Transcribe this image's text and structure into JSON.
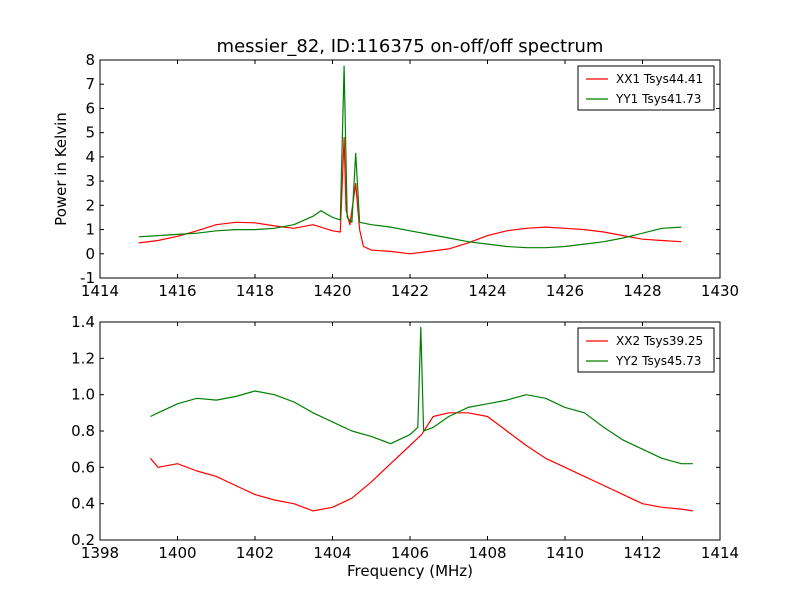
{
  "chart_data": [
    {
      "type": "line",
      "title": "messier_82, ID:116375 on-off/off spectrum",
      "xlabel": "",
      "ylabel": "Power in Kelvin",
      "xlim": [
        1414,
        1430
      ],
      "ylim": [
        -1,
        8
      ],
      "xticks": [
        1414,
        1416,
        1418,
        1420,
        1422,
        1424,
        1426,
        1428,
        1430
      ],
      "yticks": [
        -1,
        0,
        1,
        2,
        3,
        4,
        5,
        6,
        7,
        8
      ],
      "legend_position": "top-right",
      "series": [
        {
          "name": "XX1 Tsys44.41",
          "color": "#ff0000",
          "points": [
            [
              1415.0,
              0.45
            ],
            [
              1415.5,
              0.55
            ],
            [
              1416.0,
              0.72
            ],
            [
              1416.5,
              0.95
            ],
            [
              1417.0,
              1.2
            ],
            [
              1417.5,
              1.3
            ],
            [
              1418.0,
              1.28
            ],
            [
              1418.5,
              1.15
            ],
            [
              1419.0,
              1.05
            ],
            [
              1419.5,
              1.2
            ],
            [
              1420.0,
              0.95
            ],
            [
              1420.2,
              0.9
            ],
            [
              1420.3,
              4.8
            ],
            [
              1420.35,
              1.8
            ],
            [
              1420.45,
              1.2
            ],
            [
              1420.6,
              2.9
            ],
            [
              1420.7,
              1.0
            ],
            [
              1420.8,
              0.3
            ],
            [
              1421.0,
              0.15
            ],
            [
              1421.5,
              0.1
            ],
            [
              1422.0,
              0.0
            ],
            [
              1422.5,
              0.1
            ],
            [
              1423.0,
              0.2
            ],
            [
              1423.5,
              0.45
            ],
            [
              1424.0,
              0.75
            ],
            [
              1424.5,
              0.95
            ],
            [
              1425.0,
              1.05
            ],
            [
              1425.5,
              1.1
            ],
            [
              1426.0,
              1.05
            ],
            [
              1426.5,
              1.0
            ],
            [
              1427.0,
              0.9
            ],
            [
              1427.5,
              0.75
            ],
            [
              1428.0,
              0.6
            ],
            [
              1428.5,
              0.55
            ],
            [
              1429.0,
              0.5
            ]
          ]
        },
        {
          "name": "YY1 Tsys41.73",
          "color": "#008000",
          "points": [
            [
              1415.0,
              0.7
            ],
            [
              1415.5,
              0.75
            ],
            [
              1416.0,
              0.8
            ],
            [
              1416.5,
              0.85
            ],
            [
              1417.0,
              0.95
            ],
            [
              1417.5,
              1.0
            ],
            [
              1418.0,
              1.0
            ],
            [
              1418.5,
              1.05
            ],
            [
              1419.0,
              1.2
            ],
            [
              1419.5,
              1.55
            ],
            [
              1419.7,
              1.78
            ],
            [
              1420.0,
              1.5
            ],
            [
              1420.2,
              1.4
            ],
            [
              1420.3,
              7.75
            ],
            [
              1420.38,
              1.5
            ],
            [
              1420.5,
              1.3
            ],
            [
              1420.6,
              4.15
            ],
            [
              1420.7,
              1.3
            ],
            [
              1421.0,
              1.2
            ],
            [
              1421.5,
              1.1
            ],
            [
              1422.0,
              0.95
            ],
            [
              1422.5,
              0.8
            ],
            [
              1423.0,
              0.65
            ],
            [
              1423.5,
              0.5
            ],
            [
              1424.0,
              0.4
            ],
            [
              1424.5,
              0.3
            ],
            [
              1425.0,
              0.25
            ],
            [
              1425.5,
              0.25
            ],
            [
              1426.0,
              0.3
            ],
            [
              1426.5,
              0.4
            ],
            [
              1427.0,
              0.5
            ],
            [
              1427.5,
              0.65
            ],
            [
              1428.0,
              0.85
            ],
            [
              1428.5,
              1.05
            ],
            [
              1429.0,
              1.1
            ]
          ]
        }
      ]
    },
    {
      "type": "line",
      "title": "",
      "xlabel": "Frequency (MHz)",
      "ylabel": "",
      "xlim": [
        1398,
        1414
      ],
      "ylim": [
        0.2,
        1.4
      ],
      "xticks": [
        1398,
        1400,
        1402,
        1404,
        1406,
        1408,
        1410,
        1412,
        1414
      ],
      "ytick_labels": [
        "0.2",
        "0.4",
        "0.6",
        "0.8",
        "1.0",
        "1.2",
        "1.4"
      ],
      "yticks": [
        0.2,
        0.4,
        0.6,
        0.8,
        1.0,
        1.2,
        1.4
      ],
      "legend_position": "top-right",
      "series": [
        {
          "name": "XX2 Tsys39.25",
          "color": "#ff0000",
          "points": [
            [
              1399.3,
              0.65
            ],
            [
              1399.5,
              0.6
            ],
            [
              1400.0,
              0.62
            ],
            [
              1400.5,
              0.58
            ],
            [
              1401.0,
              0.55
            ],
            [
              1401.5,
              0.5
            ],
            [
              1402.0,
              0.45
            ],
            [
              1402.5,
              0.42
            ],
            [
              1403.0,
              0.4
            ],
            [
              1403.5,
              0.36
            ],
            [
              1404.0,
              0.38
            ],
            [
              1404.5,
              0.43
            ],
            [
              1405.0,
              0.52
            ],
            [
              1405.5,
              0.62
            ],
            [
              1406.0,
              0.72
            ],
            [
              1406.3,
              0.78
            ],
            [
              1406.6,
              0.88
            ],
            [
              1407.0,
              0.9
            ],
            [
              1407.5,
              0.9
            ],
            [
              1408.0,
              0.88
            ],
            [
              1408.5,
              0.8
            ],
            [
              1409.0,
              0.72
            ],
            [
              1409.5,
              0.65
            ],
            [
              1410.0,
              0.6
            ],
            [
              1410.5,
              0.55
            ],
            [
              1411.0,
              0.5
            ],
            [
              1411.5,
              0.45
            ],
            [
              1412.0,
              0.4
            ],
            [
              1412.5,
              0.38
            ],
            [
              1413.0,
              0.37
            ],
            [
              1413.3,
              0.36
            ]
          ]
        },
        {
          "name": "YY2 Tsys45.73",
          "color": "#008000",
          "points": [
            [
              1399.3,
              0.88
            ],
            [
              1399.5,
              0.9
            ],
            [
              1400.0,
              0.95
            ],
            [
              1400.5,
              0.98
            ],
            [
              1401.0,
              0.97
            ],
            [
              1401.5,
              0.99
            ],
            [
              1402.0,
              1.02
            ],
            [
              1402.5,
              1.0
            ],
            [
              1403.0,
              0.96
            ],
            [
              1403.5,
              0.9
            ],
            [
              1404.0,
              0.85
            ],
            [
              1404.5,
              0.8
            ],
            [
              1405.0,
              0.77
            ],
            [
              1405.5,
              0.73
            ],
            [
              1406.0,
              0.78
            ],
            [
              1406.2,
              0.82
            ],
            [
              1406.28,
              1.37
            ],
            [
              1406.35,
              0.8
            ],
            [
              1406.6,
              0.82
            ],
            [
              1407.0,
              0.88
            ],
            [
              1407.5,
              0.93
            ],
            [
              1408.0,
              0.95
            ],
            [
              1408.5,
              0.97
            ],
            [
              1409.0,
              1.0
            ],
            [
              1409.5,
              0.98
            ],
            [
              1410.0,
              0.93
            ],
            [
              1410.5,
              0.9
            ],
            [
              1411.0,
              0.82
            ],
            [
              1411.5,
              0.75
            ],
            [
              1412.0,
              0.7
            ],
            [
              1412.5,
              0.65
            ],
            [
              1413.0,
              0.62
            ],
            [
              1413.3,
              0.62
            ]
          ]
        }
      ]
    }
  ]
}
